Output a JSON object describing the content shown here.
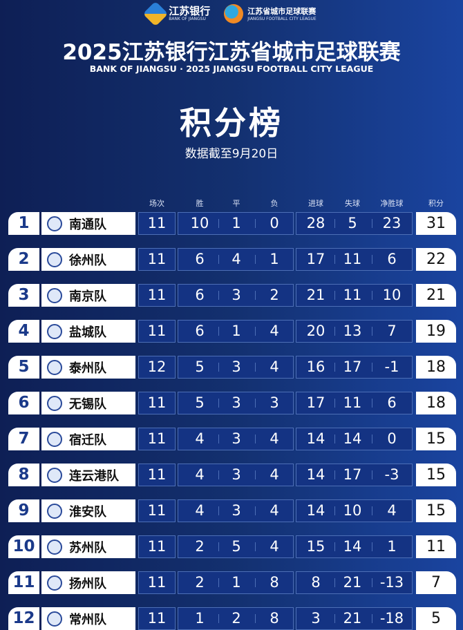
{
  "header": {
    "bank_logo": {
      "name": "江苏银行",
      "sub": "BANK OF JIANGSU"
    },
    "league_logo": {
      "name": "江苏省城市足球联赛",
      "sub": "JIANGSU FOOTBALL CITY LEAGUE"
    },
    "title": "2025江苏银行江苏省城市足球联赛",
    "subtitle": "BANK OF JIANGSU · 2025 JIANGSU FOOTBALL CITY LEAGUE",
    "heading": "积分榜",
    "date": "数据截至9月20日"
  },
  "columns": [
    "场次",
    "胜",
    "平",
    "负",
    "进球",
    "失球",
    "净胜球",
    "积分"
  ],
  "colors": {
    "rank": "#1b3a8a",
    "cell_bg": "#143383",
    "border": "#4d6fb6"
  },
  "standings": [
    {
      "rank": "1",
      "team": "南通队",
      "p": "11",
      "w": "10",
      "d": "1",
      "l": "0",
      "gf": "28",
      "ga": "5",
      "gd": "23",
      "pts": "31"
    },
    {
      "rank": "2",
      "team": "徐州队",
      "p": "11",
      "w": "6",
      "d": "4",
      "l": "1",
      "gf": "17",
      "ga": "11",
      "gd": "6",
      "pts": "22"
    },
    {
      "rank": "3",
      "team": "南京队",
      "p": "11",
      "w": "6",
      "d": "3",
      "l": "2",
      "gf": "21",
      "ga": "11",
      "gd": "10",
      "pts": "21"
    },
    {
      "rank": "4",
      "team": "盐城队",
      "p": "11",
      "w": "6",
      "d": "1",
      "l": "4",
      "gf": "20",
      "ga": "13",
      "gd": "7",
      "pts": "19"
    },
    {
      "rank": "5",
      "team": "泰州队",
      "p": "12",
      "w": "5",
      "d": "3",
      "l": "4",
      "gf": "16",
      "ga": "17",
      "gd": "-1",
      "pts": "18"
    },
    {
      "rank": "6",
      "team": "无锡队",
      "p": "11",
      "w": "5",
      "d": "3",
      "l": "3",
      "gf": "17",
      "ga": "11",
      "gd": "6",
      "pts": "18"
    },
    {
      "rank": "7",
      "team": "宿迁队",
      "p": "11",
      "w": "4",
      "d": "3",
      "l": "4",
      "gf": "14",
      "ga": "14",
      "gd": "0",
      "pts": "15"
    },
    {
      "rank": "8",
      "team": "连云港队",
      "p": "11",
      "w": "4",
      "d": "3",
      "l": "4",
      "gf": "14",
      "ga": "17",
      "gd": "-3",
      "pts": "15"
    },
    {
      "rank": "9",
      "team": "淮安队",
      "p": "11",
      "w": "4",
      "d": "3",
      "l": "4",
      "gf": "14",
      "ga": "10",
      "gd": "4",
      "pts": "15"
    },
    {
      "rank": "10",
      "team": "苏州队",
      "p": "11",
      "w": "2",
      "d": "5",
      "l": "4",
      "gf": "15",
      "ga": "14",
      "gd": "1",
      "pts": "11"
    },
    {
      "rank": "11",
      "team": "扬州队",
      "p": "11",
      "w": "2",
      "d": "1",
      "l": "8",
      "gf": "8",
      "ga": "21",
      "gd": "-13",
      "pts": "7"
    },
    {
      "rank": "12",
      "team": "常州队",
      "p": "11",
      "w": "1",
      "d": "2",
      "l": "8",
      "gf": "3",
      "ga": "21",
      "gd": "-18",
      "pts": "5"
    }
  ]
}
